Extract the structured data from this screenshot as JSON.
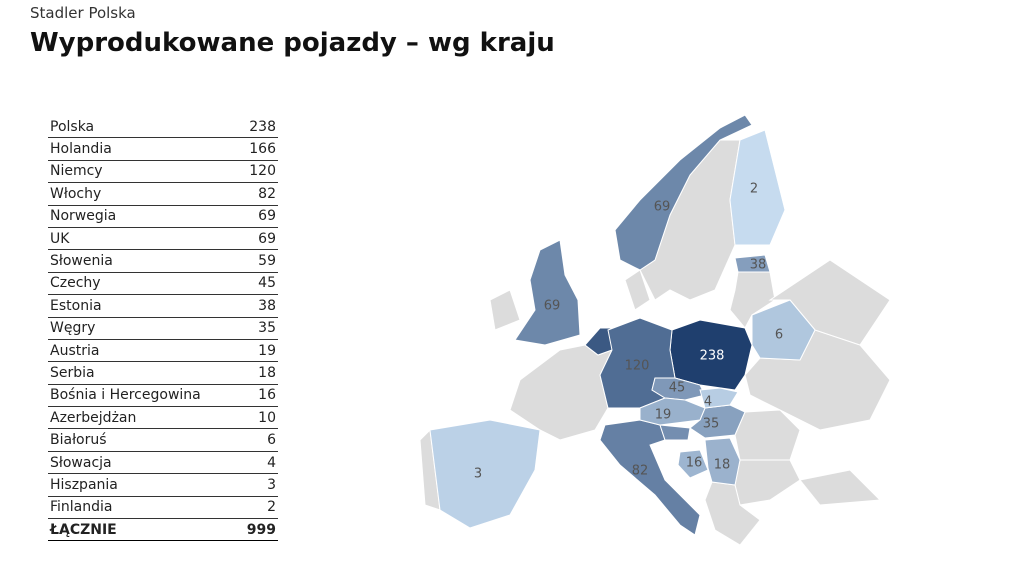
{
  "header": {
    "subtitle": "Stadler Polska",
    "title": "Wyprodukowane pojazdy – wg kraju"
  },
  "table": {
    "rows": [
      {
        "country": "Polska",
        "value": 238
      },
      {
        "country": "Holandia",
        "value": 166
      },
      {
        "country": "Niemcy",
        "value": 120
      },
      {
        "country": "Włochy",
        "value": 82
      },
      {
        "country": "Norwegia",
        "value": 69
      },
      {
        "country": "UK",
        "value": 69
      },
      {
        "country": "Słowenia",
        "value": 59
      },
      {
        "country": "Czechy",
        "value": 45
      },
      {
        "country": "Estonia",
        "value": 38
      },
      {
        "country": "Węgry",
        "value": 35
      },
      {
        "country": "Austria",
        "value": 19
      },
      {
        "country": "Serbia",
        "value": 18
      },
      {
        "country": "Bośnia i Hercegowina",
        "value": 16
      },
      {
        "country": "Azerbejdżan",
        "value": 10
      },
      {
        "country": "Białoruś",
        "value": 6
      },
      {
        "country": "Słowacja",
        "value": 4
      },
      {
        "country": "Hiszpania",
        "value": 3
      },
      {
        "country": "Finlandia",
        "value": 2
      }
    ],
    "total": {
      "label": "ŁĄCZNIE",
      "value": 999
    }
  }
}
